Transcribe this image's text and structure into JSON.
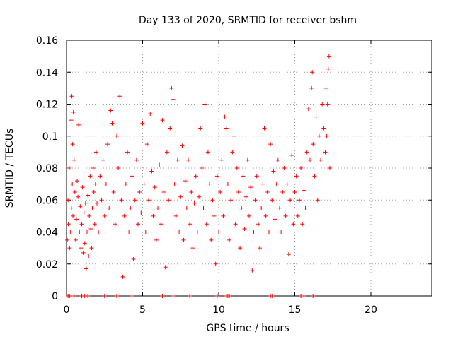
{
  "chart_data": {
    "type": "scatter",
    "title": "Day 133 of 2020, SRMTID for receiver bshm",
    "xlabel": "GPS time / hours",
    "ylabel": "SRMTID / TECUs",
    "xlim": [
      0,
      24
    ],
    "ylim": [
      0,
      0.16
    ],
    "xticks": [
      0,
      5,
      10,
      15,
      20
    ],
    "xtick_labels": [
      "0",
      "5",
      "10",
      "15",
      "20"
    ],
    "yticks": [
      0,
      0.02,
      0.04,
      0.06,
      0.08,
      0.1,
      0.12,
      0.14,
      0.16
    ],
    "ytick_labels": [
      "0",
      "0.02",
      "0.04",
      "0.06",
      "0.08",
      "0.1",
      "0.12",
      "0.14",
      "0.16"
    ],
    "grid": true,
    "marker": "plus",
    "color": "#ff0000",
    "series": [
      {
        "name": "SRMTID",
        "points": [
          [
            0.05,
            0.035
          ],
          [
            0.1,
            0.06
          ],
          [
            0.12,
            0.045
          ],
          [
            0.18,
            0.08
          ],
          [
            0.2,
            0.03
          ],
          [
            0.25,
            0.04
          ],
          [
            0.3,
            0.11
          ],
          [
            0.32,
            0.055
          ],
          [
            0.35,
            0.125
          ],
          [
            0.38,
            0.07
          ],
          [
            0.4,
            0.095
          ],
          [
            0.42,
            0.05
          ],
          [
            0.45,
            0.115
          ],
          [
            0.5,
            0.085
          ],
          [
            0.55,
            0.065
          ],
          [
            0.6,
            0.035
          ],
          [
            0.65,
            0.048
          ],
          [
            0.7,
            0.072
          ],
          [
            0.75,
            0.062
          ],
          [
            0.8,
            0.107
          ],
          [
            0.85,
            0.04
          ],
          [
            0.9,
            0.056
          ],
          [
            0.95,
            0.03
          ],
          [
            1.0,
            0.045
          ],
          [
            1.05,
            0.068
          ],
          [
            1.1,
            0.027
          ],
          [
            1.15,
            0.052
          ],
          [
            1.2,
            0.033
          ],
          [
            1.25,
            0.058
          ],
          [
            1.3,
            0.017
          ],
          [
            1.35,
            0.04
          ],
          [
            1.4,
            0.063
          ],
          [
            1.45,
            0.025
          ],
          [
            1.5,
            0.05
          ],
          [
            1.55,
            0.075
          ],
          [
            1.6,
            0.042
          ],
          [
            1.65,
            0.03
          ],
          [
            1.7,
            0.055
          ],
          [
            1.75,
            0.08
          ],
          [
            1.8,
            0.065
          ],
          [
            1.85,
            0.045
          ],
          [
            1.9,
            0.07
          ],
          [
            1.95,
            0.09
          ],
          [
            2.0,
            0.058
          ],
          [
            2.1,
            0.04
          ],
          [
            2.2,
            0.075
          ],
          [
            2.3,
            0.06
          ],
          [
            2.4,
            0.085
          ],
          [
            2.5,
            0.05
          ],
          [
            2.6,
            0.07
          ],
          [
            2.7,
            0.095
          ],
          [
            2.8,
            0.055
          ],
          [
            2.9,
            0.116
          ],
          [
            3.0,
            0.108
          ],
          [
            3.1,
            0.065
          ],
          [
            3.2,
            0.045
          ],
          [
            3.3,
            0.1
          ],
          [
            3.4,
            0.08
          ],
          [
            3.5,
            0.125
          ],
          [
            3.6,
            0.06
          ],
          [
            3.7,
            0.012
          ],
          [
            3.8,
            0.05
          ],
          [
            3.9,
            0.07
          ],
          [
            4.0,
            0.09
          ],
          [
            4.1,
            0.04
          ],
          [
            4.2,
            0.055
          ],
          [
            4.3,
            0.075
          ],
          [
            4.4,
            0.023
          ],
          [
            4.5,
            0.06
          ],
          [
            4.6,
            0.085
          ],
          [
            4.7,
            0.045
          ],
          [
            4.8,
            0.065
          ],
          [
            4.9,
            0.052
          ],
          [
            5.0,
            0.108
          ],
          [
            5.1,
            0.07
          ],
          [
            5.2,
            0.04
          ],
          [
            5.3,
            0.095
          ],
          [
            5.4,
            0.06
          ],
          [
            5.5,
            0.114
          ],
          [
            5.6,
            0.078
          ],
          [
            5.7,
            0.05
          ],
          [
            5.8,
            0.068
          ],
          [
            5.9,
            0.035
          ],
          [
            6.0,
            0.055
          ],
          [
            6.1,
            0.082
          ],
          [
            6.2,
            0.045
          ],
          [
            6.3,
            0.11
          ],
          [
            6.4,
            0.065
          ],
          [
            6.5,
            0.018
          ],
          [
            6.6,
            0.09
          ],
          [
            6.7,
            0.06
          ],
          [
            6.8,
            0.105
          ],
          [
            6.9,
            0.13
          ],
          [
            7.0,
            0.123
          ],
          [
            7.1,
            0.07
          ],
          [
            7.2,
            0.05
          ],
          [
            7.3,
            0.085
          ],
          [
            7.4,
            0.04
          ],
          [
            7.5,
            0.062
          ],
          [
            7.6,
            0.094
          ],
          [
            7.7,
            0.035
          ],
          [
            7.8,
            0.072
          ],
          [
            7.9,
            0.055
          ],
          [
            8.0,
            0.085
          ],
          [
            8.1,
            0.045
          ],
          [
            8.2,
            0.065
          ],
          [
            8.3,
            0.03
          ],
          [
            8.4,
            0.058
          ],
          [
            8.5,
            0.075
          ],
          [
            8.6,
            0.04
          ],
          [
            8.7,
            0.062
          ],
          [
            8.8,
            0.105
          ],
          [
            8.9,
            0.08
          ],
          [
            9.0,
            0.055
          ],
          [
            9.1,
            0.12
          ],
          [
            9.2,
            0.045
          ],
          [
            9.3,
            0.09
          ],
          [
            9.4,
            0.07
          ],
          [
            9.5,
            0.035
          ],
          [
            9.6,
            0.06
          ],
          [
            9.7,
            0.05
          ],
          [
            9.8,
            0.02
          ],
          [
            9.9,
            0.075
          ],
          [
            10.0,
            0.04
          ],
          [
            10.1,
            0.065
          ],
          [
            10.2,
            0.085
          ],
          [
            10.3,
            0.05
          ],
          [
            10.4,
            0.112
          ],
          [
            10.5,
            0.105
          ],
          [
            10.6,
            0.07
          ],
          [
            10.7,
            0.035
          ],
          [
            10.8,
            0.06
          ],
          [
            10.9,
            0.09
          ],
          [
            11.0,
            0.1
          ],
          [
            11.1,
            0.045
          ],
          [
            11.2,
            0.08
          ],
          [
            11.3,
            0.065
          ],
          [
            11.4,
            0.03
          ],
          [
            11.5,
            0.055
          ],
          [
            11.6,
            0.075
          ],
          [
            11.7,
            0.042
          ],
          [
            11.8,
            0.062
          ],
          [
            11.9,
            0.085
          ],
          [
            12.0,
            0.05
          ],
          [
            12.1,
            0.068
          ],
          [
            12.2,
            0.016
          ],
          [
            12.3,
            0.04
          ],
          [
            12.4,
            0.06
          ],
          [
            12.5,
            0.075
          ],
          [
            12.6,
            0.045
          ],
          [
            12.7,
            0.03
          ],
          [
            12.8,
            0.055
          ],
          [
            12.9,
            0.07
          ],
          [
            13.0,
            0.105
          ],
          [
            13.1,
            0.05
          ],
          [
            13.2,
            0.065
          ],
          [
            13.3,
            0.04
          ],
          [
            13.4,
            0.095
          ],
          [
            13.5,
            0.06
          ],
          [
            13.6,
            0.078
          ],
          [
            13.7,
            0.048
          ],
          [
            13.8,
            0.07
          ],
          [
            13.9,
            0.085
          ],
          [
            14.0,
            0.055
          ],
          [
            14.1,
            0.04
          ],
          [
            14.2,
            0.065
          ],
          [
            14.3,
            0.08
          ],
          [
            14.4,
            0.05
          ],
          [
            14.5,
            0.07
          ],
          [
            14.6,
            0.026
          ],
          [
            14.7,
            0.06
          ],
          [
            14.8,
            0.088
          ],
          [
            14.9,
            0.045
          ],
          [
            15.0,
            0.065
          ],
          [
            15.1,
            0.075
          ],
          [
            15.2,
            0.05
          ],
          [
            15.3,
            0.06
          ],
          [
            15.4,
            0.08
          ],
          [
            15.5,
            0.045
          ],
          [
            15.6,
            0.066
          ],
          [
            15.7,
            0.055
          ],
          [
            15.8,
            0.09
          ],
          [
            15.9,
            0.117
          ],
          [
            16.0,
            0.085
          ],
          [
            16.1,
            0.13
          ],
          [
            16.15,
            0.14
          ],
          [
            16.2,
            0.095
          ],
          [
            16.3,
            0.075
          ],
          [
            16.4,
            0.112
          ],
          [
            16.5,
            0.06
          ],
          [
            16.6,
            0.1
          ],
          [
            16.7,
            0.085
          ],
          [
            16.8,
            0.12
          ],
          [
            16.9,
            0.105
          ],
          [
            17.0,
            0.09
          ],
          [
            17.05,
            0.13
          ],
          [
            17.1,
            0.1
          ],
          [
            17.15,
            0.12
          ],
          [
            17.2,
            0.142
          ],
          [
            17.25,
            0.15
          ],
          [
            17.3,
            0.08
          ]
        ],
        "zero_points": [
          0.1,
          0.2,
          0.3,
          0.5,
          1.0,
          1.2,
          1.4,
          2.5,
          3.3,
          4.3,
          6.3,
          7.0,
          8.1,
          9.9,
          10.5,
          10.6,
          10.7,
          13.4,
          13.5,
          15.4,
          15.6,
          16.2
        ]
      }
    ]
  }
}
